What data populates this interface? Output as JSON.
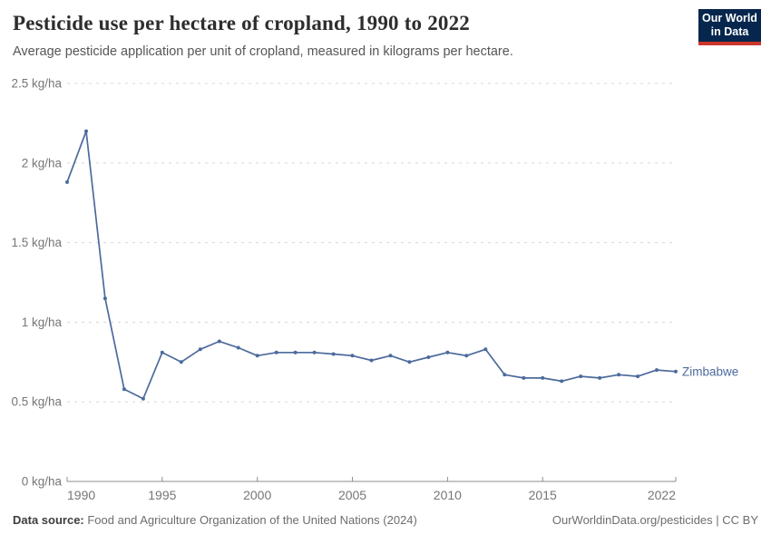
{
  "header": {
    "title": "Pesticide use per hectare of cropland, 1990 to 2022",
    "subtitle": "Average pesticide application per unit of cropland, measured in kilograms per hectare.",
    "logo": {
      "line1": "Our World",
      "line2": "in Data"
    }
  },
  "chart_data": {
    "type": "line",
    "title": "Pesticide use per hectare of cropland, 1990 to 2022",
    "xlabel": "",
    "ylabel": "kg/ha",
    "x": [
      1990,
      1991,
      1992,
      1993,
      1994,
      1995,
      1996,
      1997,
      1998,
      1999,
      2000,
      2001,
      2002,
      2003,
      2004,
      2005,
      2006,
      2007,
      2008,
      2009,
      2010,
      2011,
      2012,
      2013,
      2014,
      2015,
      2016,
      2017,
      2018,
      2019,
      2020,
      2021,
      2022
    ],
    "series": [
      {
        "name": "Zimbabwe",
        "values": [
          1.88,
          2.2,
          1.15,
          0.58,
          0.52,
          0.81,
          0.75,
          0.83,
          0.88,
          0.84,
          0.79,
          0.81,
          0.81,
          0.81,
          0.8,
          0.79,
          0.76,
          0.79,
          0.75,
          0.78,
          0.81,
          0.79,
          0.83,
          0.67,
          0.65,
          0.65,
          0.63,
          0.66,
          0.65,
          0.67,
          0.66,
          0.7,
          0.69
        ]
      }
    ],
    "ylim": [
      0,
      2.5
    ],
    "yticks": [
      0,
      0.5,
      1,
      1.5,
      2,
      2.5
    ],
    "ytick_labels": [
      "0 kg/ha",
      "0.5 kg/ha",
      "1 kg/ha",
      "1.5 kg/ha",
      "2 kg/ha",
      "2.5 kg/ha"
    ],
    "xticks": [
      1990,
      1995,
      2000,
      2005,
      2010,
      2015,
      2022
    ],
    "grid": "horizontal dashed",
    "legend_position": "end-of-line label"
  },
  "footer": {
    "source_label": "Data source:",
    "source_text": " Food and Agriculture Organization of the United Nations (2024)",
    "link_text": "OurWorldinData.org/pesticides | CC BY"
  },
  "colors": {
    "line": "#4c6a9c",
    "grid": "#d8d8d8",
    "axis": "#8c8c8c",
    "tick_label": "#767676",
    "logo_bg": "#06264d",
    "logo_stripe": "#cc352c"
  }
}
